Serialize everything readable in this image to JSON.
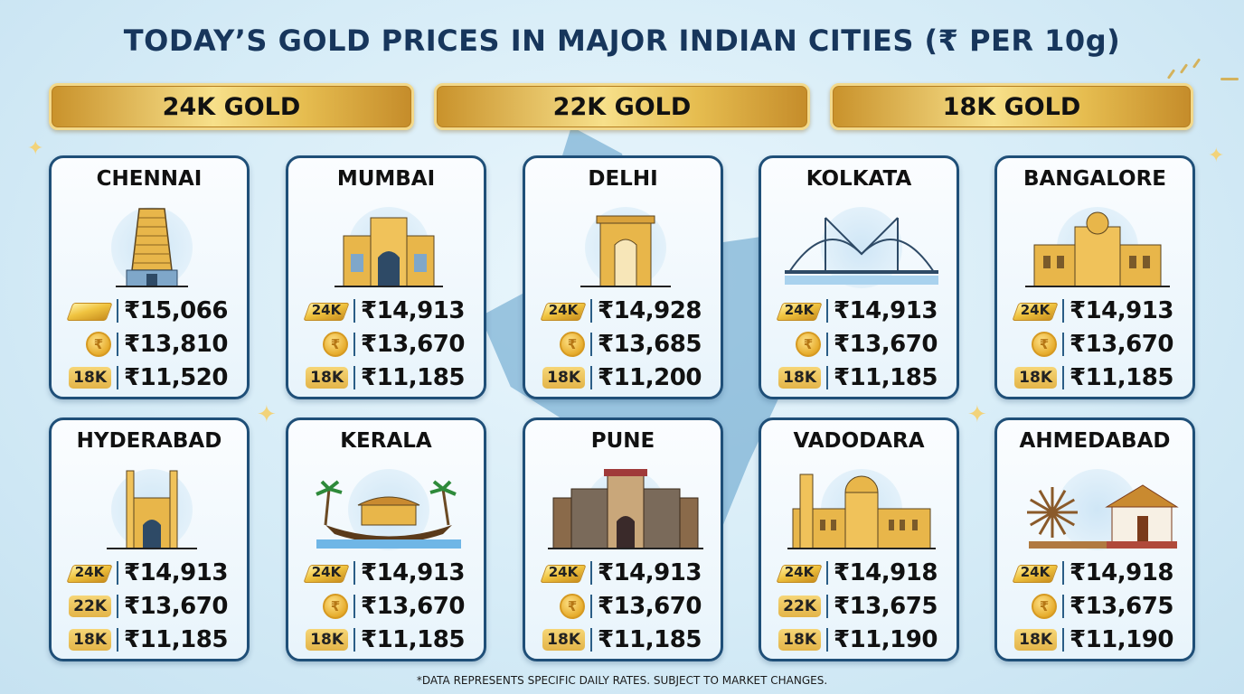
{
  "title": "TODAY’S GOLD PRICES IN MAJOR INDIAN CITIES (₹ PER 10g)",
  "karat_headers": [
    "24K GOLD",
    "22K GOLD",
    "18K GOLD"
  ],
  "icon_legend": {
    "24k": "gold-bar-icon",
    "22k": "rupee-coin-icon",
    "18k": "18k-badge"
  },
  "badges": {
    "k24": "24K",
    "k22": "22K",
    "k18": "18K",
    "coin_symbol": "₹"
  },
  "cities": [
    {
      "name": "CHENNAI",
      "landmark": "gopuram-temple",
      "k24": "₹15,066",
      "k22": "₹13,810",
      "k18": "₹11,520",
      "icon24": "bar-plain",
      "icon22": "coin"
    },
    {
      "name": "MUMBAI",
      "landmark": "gateway-of-india",
      "k24": "₹14,913",
      "k22": "₹13,670",
      "k18": "₹11,185",
      "icon24": "bar-24k",
      "icon22": "coin"
    },
    {
      "name": "DELHI",
      "landmark": "india-gate",
      "k24": "₹14,928",
      "k22": "₹13,685",
      "k18": "₹11,200",
      "icon24": "bar-24k",
      "icon22": "coin"
    },
    {
      "name": "KOLKATA",
      "landmark": "howrah-bridge",
      "k24": "₹14,913",
      "k22": "₹13,670",
      "k18": "₹11,185",
      "icon24": "bar-24k",
      "icon22": "coin"
    },
    {
      "name": "BANGALORE",
      "landmark": "vidhana-soudha",
      "k24": "₹14,913",
      "k22": "₹13,670",
      "k18": "₹11,185",
      "icon24": "bar-24k",
      "icon22": "coin"
    },
    {
      "name": "HYDERABAD",
      "landmark": "charminar",
      "k24": "₹14,913",
      "k22": "₹13,670",
      "k18": "₹11,185",
      "icon24": "bar-24k",
      "icon22": "badge"
    },
    {
      "name": "KERALA",
      "landmark": "houseboat",
      "k24": "₹14,913",
      "k22": "₹13,670",
      "k18": "₹11,185",
      "icon24": "bar-24k",
      "icon22": "coin"
    },
    {
      "name": "PUNE",
      "landmark": "shaniwar-wada",
      "k24": "₹14,913",
      "k22": "₹13,670",
      "k18": "₹11,185",
      "icon24": "bar-24k",
      "icon22": "coin"
    },
    {
      "name": "VADODARA",
      "landmark": "laxmi-vilas-palace",
      "k24": "₹14,918",
      "k22": "₹13,675",
      "k18": "₹11,190",
      "icon24": "bar-24k",
      "icon22": "badge"
    },
    {
      "name": "AHMEDABAD",
      "landmark": "charkha-sabarmati-ashram",
      "k24": "₹14,918",
      "k22": "₹13,675",
      "k18": "₹11,190",
      "icon24": "bar-24k",
      "icon22": "coin"
    }
  ],
  "footnote": "*DATA REPRESENTS SPECIFIC DAILY RATES. SUBJECT TO MARKET CHANGES.",
  "colors": {
    "title": "#17365c",
    "card_border": "#1f4f78",
    "gold": "#e3b448",
    "background": "#d6ecf7"
  }
}
